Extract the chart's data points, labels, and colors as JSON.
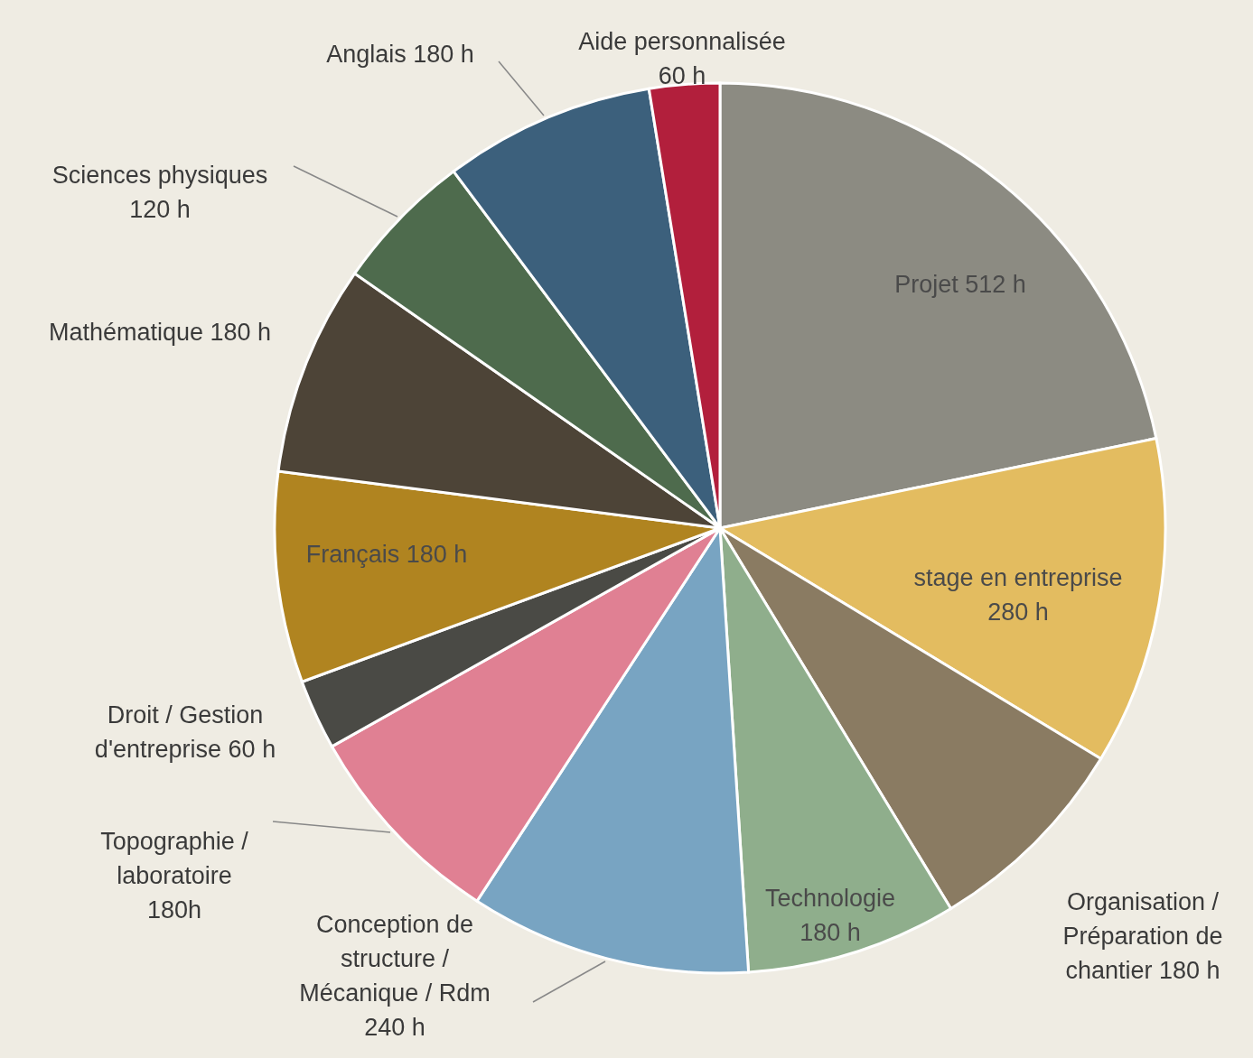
{
  "chart_data": {
    "type": "pie",
    "categories": [
      "Projet 512 h",
      "stage en entreprise\n280 h",
      "Organisation /\nPréparation de\nchantier 180 h",
      "Technologie\n180 h",
      "Conception de\nstructure /\nMécanique / Rdm\n240 h",
      "Topographie /\nlaboratoire\n180h",
      "Droit / Gestion\nd'entreprise 60 h",
      "Français 180 h",
      "Mathématique 180 h",
      "Sciences physiques\n120 h",
      "Anglais 180 h",
      "Aide personnalisée\n60 h"
    ],
    "values": [
      512,
      280,
      180,
      180,
      240,
      180,
      60,
      180,
      180,
      120,
      180,
      60
    ],
    "colors": [
      "#8c8b82",
      "#e3bc60",
      "#8a7b62",
      "#8fae8c",
      "#78a4c2",
      "#e08093",
      "#4a4a45",
      "#b08420",
      "#4d4437",
      "#4e6b4d",
      "#3c607c",
      "#b21f3c"
    ]
  }
}
